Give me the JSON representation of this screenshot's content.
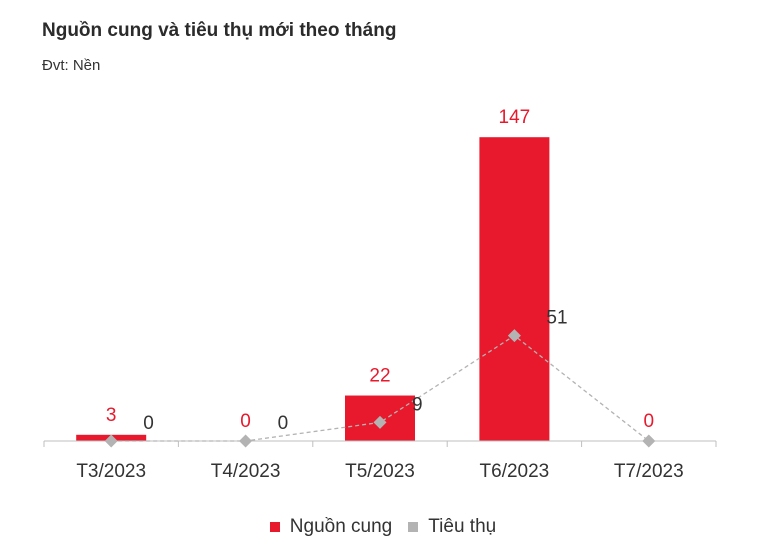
{
  "chart_data": {
    "type": "bar+line",
    "title": "Nguồn cung và tiêu thụ mới theo tháng",
    "subtitle": "Đvt: Nền",
    "categories": [
      "T3/2023",
      "T4/2023",
      "T5/2023",
      "T6/2023",
      "T7/2023"
    ],
    "series": [
      {
        "name": "Nguồn cung",
        "type": "bar",
        "color": "#e8192c",
        "values": [
          3,
          0,
          22,
          147,
          0
        ]
      },
      {
        "name": "Tiêu thụ",
        "type": "line",
        "color": "#b3b3b3",
        "values": [
          0,
          0,
          9,
          51,
          0
        ]
      }
    ],
    "ylim": [
      0,
      160
    ],
    "grid": false,
    "legend": "bottom"
  }
}
